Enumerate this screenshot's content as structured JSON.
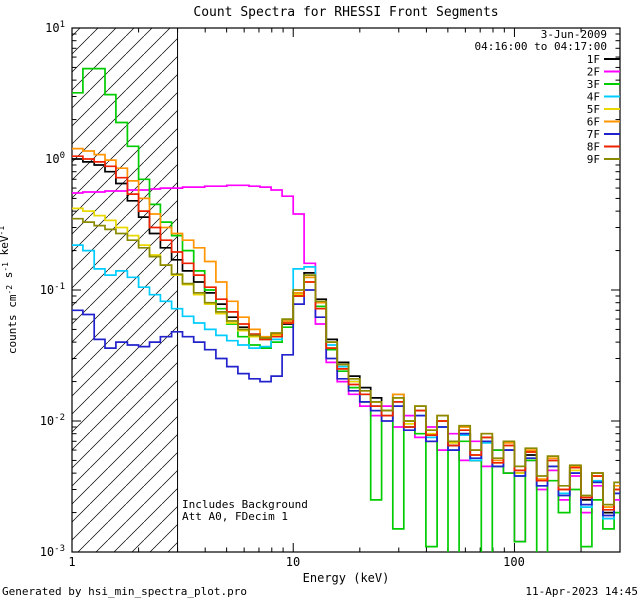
{
  "title": "Count Spectra for RHESSI Front Segments",
  "header": {
    "date": "3-Jun-2009",
    "time_range": "04:16:00 to 04:17:00",
    "time_color": "#0000aa"
  },
  "annotations": {
    "line1": "Includes Background",
    "line2": "Att A0, FDecim 1"
  },
  "footer": {
    "left": "Generated by hsi_min_spectra_plot.pro",
    "right": "11-Apr-2023 14:45"
  },
  "axes": {
    "xlabel": "Energy (keV)",
    "x_tick_labels": [
      "1",
      "10",
      "100"
    ],
    "y_tick_exponents": [
      1,
      0,
      -1,
      -2,
      -3
    ],
    "ylabel_segments": [
      {
        "text": "counts cm",
        "sup": false
      },
      {
        "text": "-2",
        "sup": true
      },
      {
        "text": " s",
        "sup": false
      },
      {
        "text": "-1",
        "sup": true
      },
      {
        "text": " keV",
        "sup": false
      },
      {
        "text": "-1",
        "sup": true
      }
    ]
  },
  "chart_data": {
    "type": "line",
    "step_mode": true,
    "title": "Count Spectra for RHESSI Front Segments",
    "xlabel": "Energy (keV)",
    "ylabel": "counts cm^-2 s^-1 keV^-1",
    "xscale": "log",
    "yscale": "log",
    "xlim": [
      1,
      300
    ],
    "ylim": [
      0.001,
      10
    ],
    "grid": false,
    "legend_position": "top-right",
    "hatch_x_range": [
      1,
      3
    ],
    "x": [
      1.0,
      1.12,
      1.26,
      1.41,
      1.58,
      1.78,
      2.0,
      2.24,
      2.51,
      2.82,
      3.16,
      3.55,
      3.98,
      4.47,
      5.01,
      5.62,
      6.31,
      7.08,
      7.94,
      8.91,
      10.0,
      11.2,
      12.6,
      14.1,
      15.8,
      17.8,
      20.0,
      22.4,
      25.1,
      28.2,
      31.6,
      35.5,
      39.8,
      44.7,
      50.1,
      56.2,
      63.1,
      70.8,
      79.4,
      89.1,
      100,
      112,
      126,
      141,
      158,
      178,
      200,
      224,
      251,
      282
    ],
    "series": [
      {
        "name": "1F",
        "color": "#000000",
        "values": [
          1.0,
          0.95,
          0.9,
          0.8,
          0.65,
          0.48,
          0.36,
          0.27,
          0.21,
          0.17,
          0.14,
          0.115,
          0.095,
          0.078,
          0.062,
          0.052,
          0.046,
          0.042,
          0.044,
          0.055,
          0.095,
          0.135,
          0.085,
          0.042,
          0.028,
          0.022,
          0.018,
          0.015,
          0.012,
          0.016,
          0.009,
          0.012,
          0.007,
          0.01,
          0.0065,
          0.008,
          0.005,
          0.0075,
          0.0045,
          0.006,
          0.004,
          0.0055,
          0.0035,
          0.005,
          0.003,
          0.0045,
          0.0025,
          0.004,
          0.002,
          0.003
        ]
      },
      {
        "name": "2F",
        "color": "#ff00ff",
        "values": [
          0.55,
          0.56,
          0.56,
          0.57,
          0.57,
          0.58,
          0.58,
          0.59,
          0.6,
          0.6,
          0.61,
          0.61,
          0.62,
          0.62,
          0.63,
          0.63,
          0.62,
          0.61,
          0.58,
          0.52,
          0.38,
          0.16,
          0.055,
          0.028,
          0.02,
          0.016,
          0.013,
          0.011,
          0.013,
          0.009,
          0.011,
          0.0075,
          0.009,
          0.006,
          0.008,
          0.005,
          0.007,
          0.0045,
          0.006,
          0.004,
          0.0012,
          0.005,
          0.003,
          0.0042,
          0.0025,
          0.0038,
          0.002,
          0.0032,
          0.0018,
          0.0025
        ]
      },
      {
        "name": "3F",
        "color": "#00cc00",
        "values": [
          3.2,
          4.9,
          4.9,
          3.1,
          1.9,
          1.25,
          0.7,
          0.45,
          0.33,
          0.26,
          0.2,
          0.14,
          0.1,
          0.072,
          0.055,
          0.044,
          0.038,
          0.036,
          0.04,
          0.052,
          0.09,
          0.125,
          0.075,
          0.035,
          0.024,
          0.018,
          0.014,
          0.0025,
          0.012,
          0.0015,
          0.01,
          0.008,
          0.0011,
          0.009,
          0.0008,
          0.007,
          0.005,
          0.0009,
          0.006,
          0.004,
          0.0012,
          0.005,
          0.0008,
          0.0035,
          0.002,
          0.003,
          0.0011,
          0.0025,
          0.0015,
          0.002
        ]
      },
      {
        "name": "4F",
        "color": "#00ccff",
        "values": [
          0.22,
          0.2,
          0.145,
          0.13,
          0.14,
          0.125,
          0.105,
          0.092,
          0.082,
          0.072,
          0.063,
          0.056,
          0.05,
          0.045,
          0.041,
          0.038,
          0.036,
          0.037,
          0.042,
          0.058,
          0.145,
          0.15,
          0.08,
          0.038,
          0.026,
          0.02,
          0.016,
          0.013,
          0.011,
          0.014,
          0.009,
          0.011,
          0.0075,
          0.009,
          0.006,
          0.0078,
          0.005,
          0.0068,
          0.0045,
          0.006,
          0.0038,
          0.0052,
          0.0032,
          0.0045,
          0.0028,
          0.004,
          0.0022,
          0.0035,
          0.0018,
          0.0028
        ]
      },
      {
        "name": "5F",
        "color": "#e8d800",
        "values": [
          0.42,
          0.4,
          0.37,
          0.34,
          0.3,
          0.26,
          0.22,
          0.185,
          0.155,
          0.13,
          0.11,
          0.092,
          0.078,
          0.066,
          0.056,
          0.049,
          0.044,
          0.042,
          0.045,
          0.056,
          0.092,
          0.115,
          0.072,
          0.036,
          0.025,
          0.02,
          0.016,
          0.014,
          0.011,
          0.015,
          0.0095,
          0.012,
          0.008,
          0.01,
          0.0068,
          0.0085,
          0.0055,
          0.0075,
          0.0048,
          0.0065,
          0.004,
          0.0058,
          0.0035,
          0.005,
          0.003,
          0.0042,
          0.0026,
          0.0038,
          0.0022,
          0.003
        ]
      },
      {
        "name": "6F",
        "color": "#ff9500",
        "values": [
          1.2,
          1.15,
          1.08,
          0.98,
          0.85,
          0.68,
          0.5,
          0.38,
          0.3,
          0.27,
          0.24,
          0.21,
          0.165,
          0.115,
          0.082,
          0.062,
          0.05,
          0.044,
          0.046,
          0.058,
          0.095,
          0.125,
          0.08,
          0.04,
          0.027,
          0.021,
          0.017,
          0.014,
          0.012,
          0.016,
          0.01,
          0.013,
          0.0085,
          0.011,
          0.007,
          0.009,
          0.006,
          0.008,
          0.005,
          0.0068,
          0.0042,
          0.006,
          0.0036,
          0.0052,
          0.003,
          0.0045,
          0.0026,
          0.004,
          0.0022,
          0.0032
        ]
      },
      {
        "name": "7F",
        "color": "#2222cc",
        "values": [
          0.07,
          0.065,
          0.042,
          0.036,
          0.04,
          0.038,
          0.037,
          0.04,
          0.044,
          0.048,
          0.044,
          0.04,
          0.035,
          0.03,
          0.026,
          0.023,
          0.021,
          0.02,
          0.022,
          0.032,
          0.078,
          0.1,
          0.062,
          0.03,
          0.021,
          0.017,
          0.014,
          0.012,
          0.01,
          0.013,
          0.0085,
          0.011,
          0.007,
          0.009,
          0.006,
          0.008,
          0.0052,
          0.007,
          0.0045,
          0.006,
          0.0038,
          0.0052,
          0.0032,
          0.0045,
          0.0027,
          0.004,
          0.0023,
          0.0034,
          0.0019,
          0.0028
        ]
      },
      {
        "name": "8F",
        "color": "#ee2200",
        "values": [
          1.05,
          1.0,
          0.95,
          0.88,
          0.72,
          0.54,
          0.4,
          0.3,
          0.24,
          0.195,
          0.16,
          0.13,
          0.105,
          0.085,
          0.068,
          0.055,
          0.046,
          0.042,
          0.044,
          0.056,
          0.09,
          0.115,
          0.072,
          0.036,
          0.025,
          0.019,
          0.016,
          0.013,
          0.011,
          0.014,
          0.009,
          0.012,
          0.0078,
          0.01,
          0.0065,
          0.0085,
          0.0055,
          0.0075,
          0.0048,
          0.0065,
          0.0042,
          0.0058,
          0.0035,
          0.005,
          0.003,
          0.0044,
          0.0026,
          0.0038,
          0.0021,
          0.003
        ]
      },
      {
        "name": "9F",
        "color": "#8a8a00",
        "values": [
          0.35,
          0.33,
          0.31,
          0.29,
          0.27,
          0.24,
          0.21,
          0.18,
          0.155,
          0.132,
          0.112,
          0.095,
          0.08,
          0.068,
          0.058,
          0.05,
          0.045,
          0.043,
          0.047,
          0.06,
          0.1,
          0.13,
          0.082,
          0.04,
          0.027,
          0.021,
          0.017,
          0.014,
          0.012,
          0.015,
          0.01,
          0.013,
          0.0085,
          0.011,
          0.007,
          0.0092,
          0.006,
          0.008,
          0.0052,
          0.007,
          0.0045,
          0.0062,
          0.0038,
          0.0054,
          0.0032,
          0.0046,
          0.0027,
          0.004,
          0.0023,
          0.0034
        ]
      }
    ]
  }
}
